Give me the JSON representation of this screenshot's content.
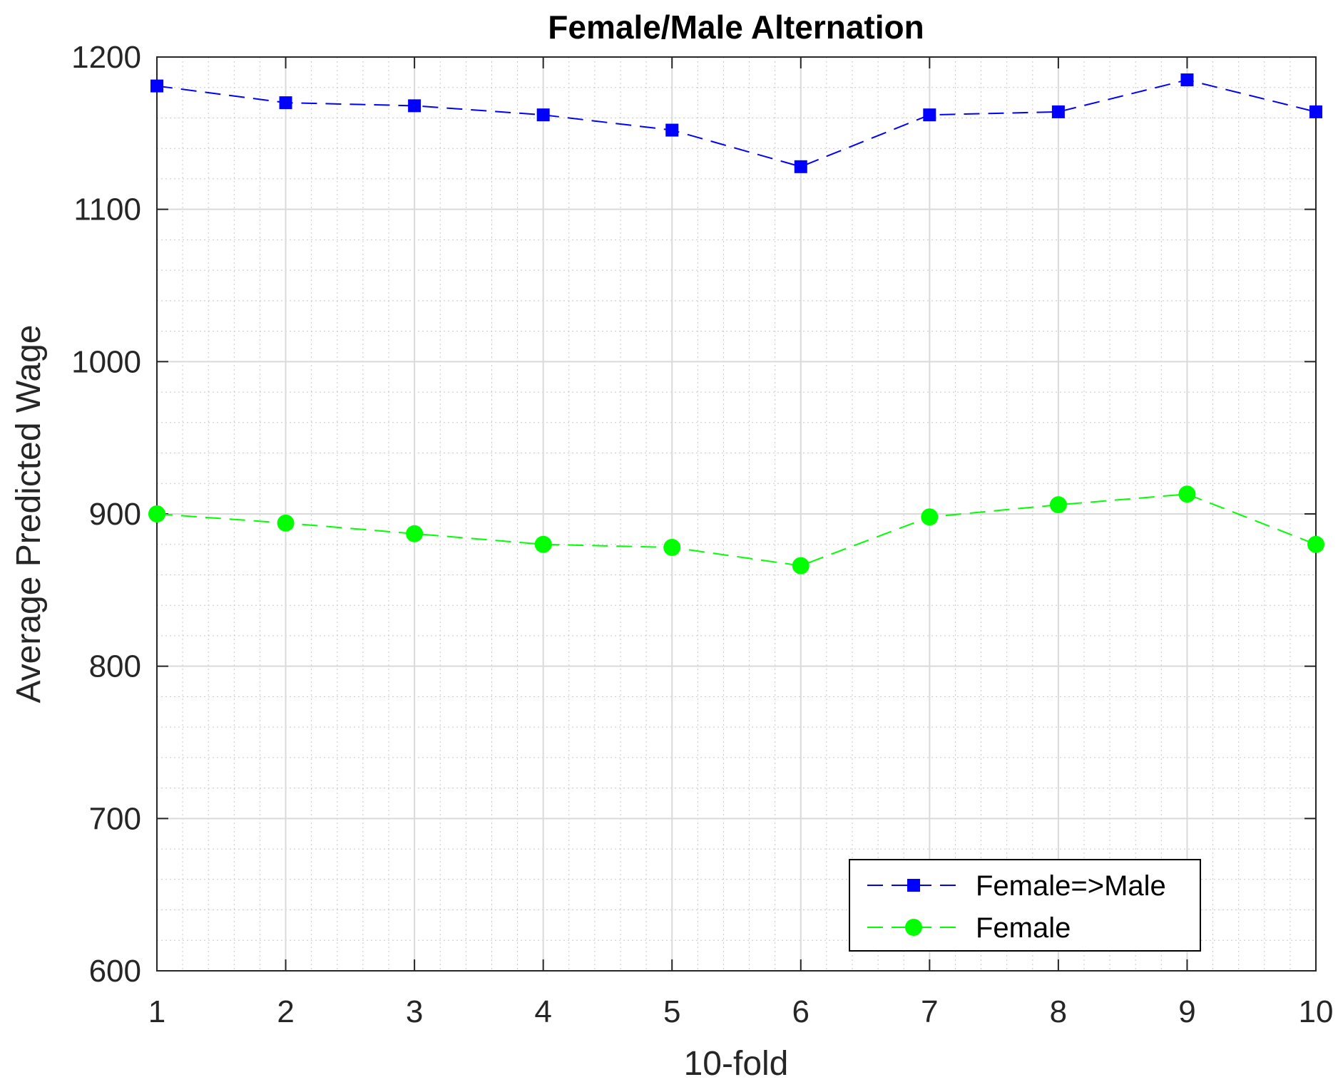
{
  "chart_data": {
    "type": "line",
    "title": "Female/Male Alternation",
    "xlabel": "10-fold",
    "ylabel": "Average Predicted Wage",
    "x": [
      1,
      2,
      3,
      4,
      5,
      6,
      7,
      8,
      9,
      10
    ],
    "xlim": [
      1,
      10
    ],
    "ylim": [
      600,
      1200
    ],
    "xticks": [
      "1",
      "2",
      "3",
      "4",
      "5",
      "6",
      "7",
      "8",
      "9",
      "10"
    ],
    "yticks": [
      "600",
      "700",
      "800",
      "900",
      "1000",
      "1100",
      "1200"
    ],
    "grid": true,
    "minor_grid": true,
    "legend_position": "bottom-right",
    "series": [
      {
        "name": "Female=>Male",
        "values": [
          1181,
          1170,
          1168,
          1162,
          1152,
          1128,
          1162,
          1164,
          1185,
          1164
        ],
        "color": "#0000ff",
        "marker": "square",
        "line_style": "dashed"
      },
      {
        "name": "Female",
        "values": [
          900,
          894,
          887,
          880,
          878,
          866,
          898,
          906,
          913,
          880
        ],
        "color": "#00ff00",
        "marker": "circle",
        "line_style": "dashed"
      }
    ]
  }
}
